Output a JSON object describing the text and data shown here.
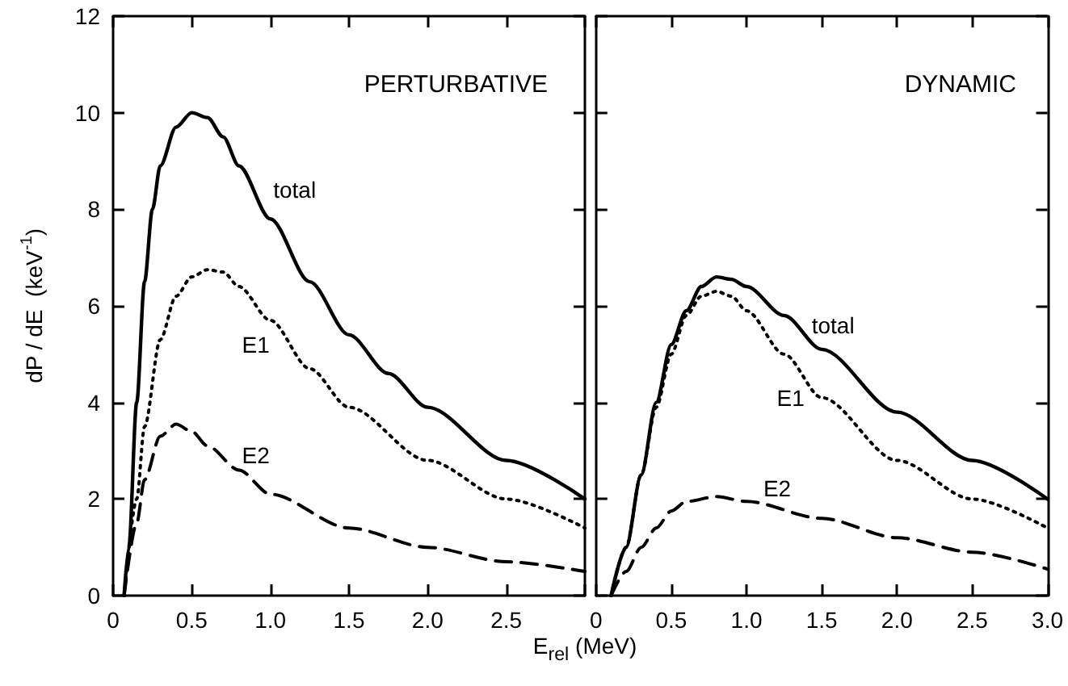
{
  "chart_data": [
    {
      "type": "line",
      "title": "PERTURBATIVE",
      "xlabel": "E$_{rel}$ (MeV)",
      "ylabel": "dP / dE  (keV$^{-1}$)",
      "xlim": [
        0,
        3
      ],
      "xticks": [
        0,
        0.5,
        {
          "value": 1,
          "label": "1.0"
        },
        1.5,
        {
          "value": 2,
          "label": "2.0"
        },
        2.5,
        {
          "value": 3,
          "label": null
        }
      ],
      "ylim": [
        0,
        12
      ],
      "yticks": [
        0,
        2,
        4,
        6,
        8,
        10,
        12
      ],
      "series": [
        {
          "name": "total",
          "color": "#000000",
          "line_style": "solid",
          "x": [
            0.07,
            0.1,
            0.15,
            0.2,
            0.25,
            0.3,
            0.4,
            0.5,
            0.6,
            0.7,
            0.8,
            1.0,
            1.25,
            1.5,
            1.75,
            2.0,
            2.5,
            3.0
          ],
          "values": [
            0,
            1,
            4,
            6.5,
            8,
            8.9,
            9.7,
            10.0,
            9.9,
            9.5,
            8.9,
            7.8,
            6.5,
            5.4,
            4.6,
            3.9,
            2.8,
            2.0
          ]
        },
        {
          "name": "E1",
          "color": "#000000",
          "line_style": "dotted",
          "x": [
            0.07,
            0.15,
            0.2,
            0.3,
            0.4,
            0.5,
            0.6,
            0.7,
            0.8,
            1.0,
            1.25,
            1.5,
            2.0,
            2.5,
            3.0
          ],
          "values": [
            0,
            2,
            3.5,
            5.3,
            6.2,
            6.6,
            6.75,
            6.7,
            6.4,
            5.7,
            4.7,
            3.9,
            2.8,
            2.0,
            1.4
          ]
        },
        {
          "name": "E2",
          "color": "#000000",
          "line_style": "dashed",
          "x": [
            0.07,
            0.15,
            0.2,
            0.3,
            0.4,
            0.5,
            0.6,
            0.8,
            1.0,
            1.5,
            2.0,
            2.5,
            3.0
          ],
          "values": [
            0,
            1.5,
            2.4,
            3.3,
            3.55,
            3.4,
            3.1,
            2.6,
            2.1,
            1.4,
            1.0,
            0.7,
            0.5
          ]
        }
      ]
    },
    {
      "type": "line",
      "title": "DYNAMIC",
      "tick_labels": "x",
      "xlim": [
        0,
        3
      ],
      "xticks": [
        0,
        0.5,
        {
          "value": 1,
          "label": "1.0"
        },
        1.5,
        {
          "value": 2,
          "label": "2.0"
        },
        2.5,
        {
          "value": 3,
          "label": "3.0"
        }
      ],
      "ylim": [
        0,
        12
      ],
      "yticks": [
        0,
        2,
        4,
        6,
        8,
        10,
        12
      ],
      "series": [
        {
          "name": "total",
          "color": "#000000",
          "line_style": "solid",
          "x": [
            0.1,
            0.2,
            0.3,
            0.4,
            0.5,
            0.6,
            0.7,
            0.8,
            0.9,
            1.0,
            1.25,
            1.5,
            2.0,
            2.5,
            3.0
          ],
          "values": [
            0,
            1,
            2.5,
            4,
            5.2,
            5.9,
            6.4,
            6.6,
            6.55,
            6.4,
            5.8,
            5.1,
            3.8,
            2.8,
            2.0
          ]
        },
        {
          "name": "E1",
          "color": "#000000",
          "line_style": "dotted",
          "x": [
            0.1,
            0.2,
            0.3,
            0.4,
            0.5,
            0.6,
            0.7,
            0.8,
            0.9,
            1.0,
            1.25,
            1.5,
            2.0,
            2.5,
            3.0
          ],
          "values": [
            0,
            1,
            2.5,
            3.9,
            5.0,
            5.8,
            6.2,
            6.3,
            6.2,
            5.9,
            5.0,
            4.1,
            2.8,
            2.0,
            1.4
          ]
        },
        {
          "name": "E2",
          "color": "#000000",
          "line_style": "dashed",
          "x": [
            0.1,
            0.2,
            0.3,
            0.4,
            0.5,
            0.6,
            0.8,
            1.0,
            1.5,
            2.0,
            2.5,
            3.0
          ],
          "values": [
            0,
            0.5,
            1.0,
            1.4,
            1.75,
            1.95,
            2.05,
            1.95,
            1.6,
            1.2,
            0.9,
            0.55
          ]
        }
      ]
    }
  ]
}
